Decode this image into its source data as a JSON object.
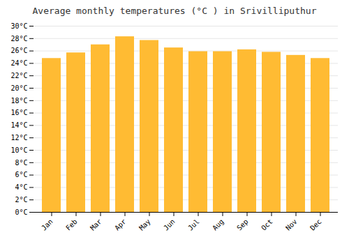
{
  "chart_data": {
    "type": "bar",
    "title": "Average monthly temperatures (°C ) in Srivilliputhur",
    "categories": [
      "Jan",
      "Feb",
      "Mar",
      "Apr",
      "May",
      "Jun",
      "Jul",
      "Aug",
      "Sep",
      "Oct",
      "Nov",
      "Dec"
    ],
    "values": [
      24.8,
      25.7,
      27.0,
      28.3,
      27.7,
      26.5,
      25.9,
      25.9,
      26.2,
      25.8,
      25.3,
      24.8
    ],
    "color": "#FFBB33",
    "ylim": [
      0,
      30
    ],
    "yticks": [
      {
        "value": 0,
        "label": "0°C"
      },
      {
        "value": 2,
        "label": "2°C"
      },
      {
        "value": 4,
        "label": "4°C"
      },
      {
        "value": 6,
        "label": "6°C"
      },
      {
        "value": 8,
        "label": "8°C"
      },
      {
        "value": 10,
        "label": "10°C"
      },
      {
        "value": 12,
        "label": "12°C"
      },
      {
        "value": 14,
        "label": "14°C"
      },
      {
        "value": 16,
        "label": "16°C"
      },
      {
        "value": 18,
        "label": "18°C"
      },
      {
        "value": 20,
        "label": "20°C"
      },
      {
        "value": 22,
        "label": "22°C"
      },
      {
        "value": 24,
        "label": "24°C"
      },
      {
        "value": 26,
        "label": "26°C"
      },
      {
        "value": 28,
        "label": "28°C"
      },
      {
        "value": 30,
        "label": "30°C"
      }
    ],
    "grid": true
  }
}
